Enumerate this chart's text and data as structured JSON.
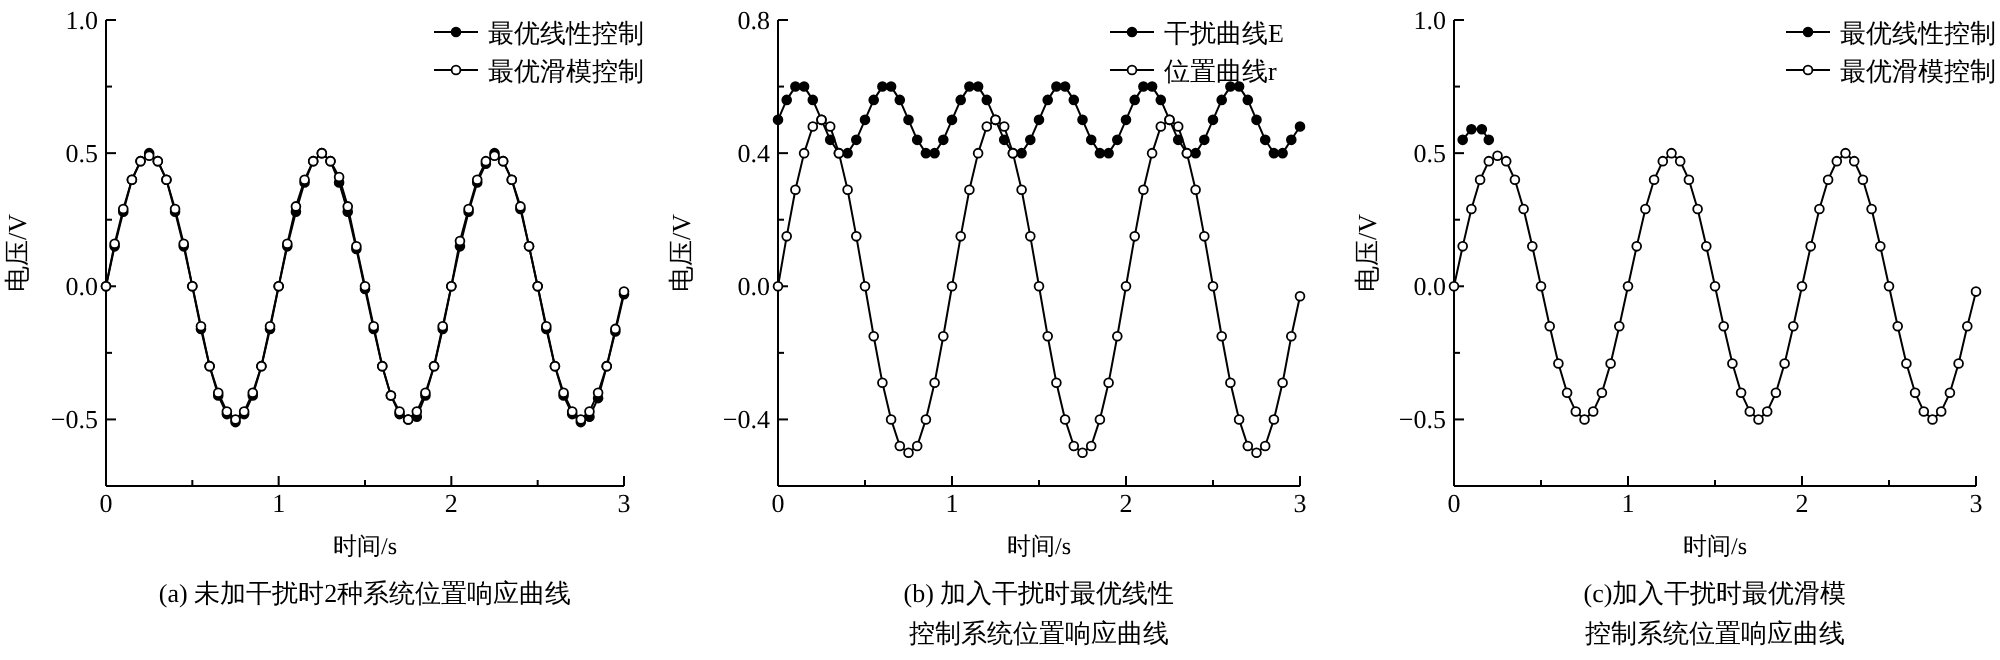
{
  "chart_data": [
    {
      "type": "line",
      "title": "(a) 未加干扰时2种系统位置响应曲线",
      "xlabel": "时间/s",
      "ylabel": "电压/V",
      "xlim": [
        0,
        3
      ],
      "ylim": [
        -0.75,
        1.0
      ],
      "xticks": [
        0,
        {
          "value": 0.5,
          "label": null
        },
        1,
        {
          "value": 1.5,
          "label": null
        },
        2,
        {
          "value": 2.5,
          "label": null
        },
        3
      ],
      "yticks": [
        {
          "value": -0.5,
          "label": "−0.5"
        },
        {
          "value": -0.25,
          "label": null
        },
        {
          "value": 0,
          "label": "0.0"
        },
        {
          "value": 0.25,
          "label": null
        },
        {
          "value": 0.5,
          "label": "0.5"
        },
        {
          "value": 0.75,
          "label": null
        },
        {
          "value": 1.0,
          "label": "1.0"
        }
      ],
      "legend": "top right",
      "grid": false,
      "x": [
        0,
        0.05,
        0.1,
        0.15,
        0.2,
        0.25,
        0.3,
        0.35,
        0.4,
        0.45,
        0.5,
        0.55,
        0.6,
        0.65,
        0.7,
        0.75,
        0.8,
        0.85,
        0.9,
        0.95,
        1,
        1.05,
        1.1,
        1.15,
        1.2,
        1.25,
        1.3,
        1.35,
        1.4,
        1.45,
        1.5,
        1.55,
        1.6,
        1.65,
        1.7,
        1.75,
        1.8,
        1.85,
        1.9,
        1.95,
        2,
        2.05,
        2.1,
        2.15,
        2.2,
        2.25,
        2.3,
        2.35,
        2.4,
        2.45,
        2.5,
        2.55,
        2.6,
        2.65,
        2.7,
        2.75,
        2.8,
        2.85,
        2.9,
        2.95,
        3
      ],
      "series": [
        {
          "name": "最优线性控制",
          "color": "#000000",
          "marker": "circle",
          "values": [
            0,
            0.15,
            0.28,
            0.4,
            0.47,
            0.5,
            0.47,
            0.4,
            0.28,
            0.15,
            0,
            -0.16,
            -0.3,
            -0.41,
            -0.48,
            -0.51,
            -0.48,
            -0.41,
            -0.3,
            -0.16,
            0,
            0.15,
            0.28,
            0.39,
            0.47,
            0.5,
            0.47,
            0.39,
            0.28,
            0.14,
            -0.01,
            -0.16,
            -0.3,
            -0.41,
            -0.48,
            -0.5,
            -0.49,
            -0.41,
            -0.3,
            -0.16,
            0,
            0.15,
            0.28,
            0.39,
            0.46,
            0.5,
            0.47,
            0.4,
            0.29,
            0.15,
            0,
            -0.16,
            -0.3,
            -0.41,
            -0.48,
            -0.51,
            -0.49,
            -0.42,
            -0.3,
            -0.17,
            -0.03
          ]
        },
        {
          "name": "最优滑模控制",
          "color": "#000000",
          "marker": "circle",
          "values": [
            0,
            0.16,
            0.29,
            0.4,
            0.47,
            0.49,
            0.47,
            0.4,
            0.29,
            0.16,
            0,
            -0.15,
            -0.3,
            -0.4,
            -0.47,
            -0.5,
            -0.47,
            -0.4,
            -0.3,
            -0.15,
            0,
            0.16,
            0.3,
            0.4,
            0.47,
            0.5,
            0.47,
            0.41,
            0.3,
            0.15,
            0,
            -0.15,
            -0.3,
            -0.41,
            -0.47,
            -0.5,
            -0.47,
            -0.4,
            -0.3,
            -0.15,
            0,
            0.17,
            0.29,
            0.4,
            0.47,
            0.49,
            0.47,
            0.4,
            0.3,
            0.15,
            0,
            -0.15,
            -0.3,
            -0.4,
            -0.47,
            -0.5,
            -0.47,
            -0.4,
            -0.3,
            -0.16,
            -0.02
          ]
        }
      ]
    },
    {
      "type": "line",
      "title": "(b) 加入干扰时最优线性控制系统位置响应曲线",
      "xlabel": "时间/s",
      "ylabel": "电压/V",
      "xlim": [
        0,
        3
      ],
      "ylim": [
        -0.6,
        0.8
      ],
      "xticks": [
        0,
        {
          "value": 0.5,
          "label": null
        },
        1,
        {
          "value": 1.5,
          "label": null
        },
        2,
        {
          "value": 2.5,
          "label": null
        },
        3
      ],
      "yticks": [
        {
          "value": -0.4,
          "label": "−0.4"
        },
        {
          "value": -0.2,
          "label": null
        },
        {
          "value": 0,
          "label": "0.0"
        },
        {
          "value": 0.2,
          "label": null
        },
        {
          "value": 0.4,
          "label": "0.4"
        },
        {
          "value": 0.6,
          "label": null
        },
        {
          "value": 0.8,
          "label": "0.8"
        }
      ],
      "legend": "top right",
      "grid": false,
      "x": [
        0,
        0.05,
        0.1,
        0.15,
        0.2,
        0.25,
        0.3,
        0.35,
        0.4,
        0.45,
        0.5,
        0.55,
        0.6,
        0.65,
        0.7,
        0.75,
        0.8,
        0.85,
        0.9,
        0.95,
        1,
        1.05,
        1.1,
        1.15,
        1.2,
        1.25,
        1.3,
        1.35,
        1.4,
        1.45,
        1.5,
        1.55,
        1.6,
        1.65,
        1.7,
        1.75,
        1.8,
        1.85,
        1.9,
        1.95,
        2,
        2.05,
        2.1,
        2.15,
        2.2,
        2.25,
        2.3,
        2.35,
        2.4,
        2.45,
        2.5,
        2.55,
        2.6,
        2.65,
        2.7,
        2.75,
        2.8,
        2.85,
        2.9,
        2.95,
        3
      ],
      "series": [
        {
          "name": "干扰曲线E",
          "color": "#000000",
          "marker": "circle",
          "values": [
            0.5,
            0.56,
            0.6,
            0.6,
            0.56,
            0.5,
            0.44,
            0.4,
            0.4,
            0.44,
            0.5,
            0.56,
            0.6,
            0.6,
            0.56,
            0.5,
            0.44,
            0.4,
            0.4,
            0.44,
            0.5,
            0.56,
            0.6,
            0.6,
            0.56,
            0.5,
            0.44,
            0.4,
            0.4,
            0.44,
            0.5,
            0.56,
            0.6,
            0.6,
            0.56,
            0.5,
            0.44,
            0.4,
            0.4,
            0.44,
            0.5,
            0.56,
            0.6,
            0.6,
            0.56,
            0.5,
            0.44,
            0.4,
            0.4,
            0.44,
            0.5,
            0.56,
            0.6,
            0.6,
            0.56,
            0.5,
            0.44,
            0.4,
            0.4,
            0.44,
            0.48
          ]
        },
        {
          "name": "位置曲线r",
          "color": "#000000",
          "marker": "circle",
          "values": [
            0,
            0.15,
            0.29,
            0.4,
            0.48,
            0.5,
            0.48,
            0.4,
            0.29,
            0.15,
            0,
            -0.15,
            -0.29,
            -0.4,
            -0.48,
            -0.5,
            -0.48,
            -0.4,
            -0.29,
            -0.15,
            0,
            0.15,
            0.29,
            0.4,
            0.48,
            0.5,
            0.48,
            0.4,
            0.29,
            0.15,
            0,
            -0.15,
            -0.29,
            -0.4,
            -0.48,
            -0.5,
            -0.48,
            -0.4,
            -0.29,
            -0.15,
            0,
            0.15,
            0.29,
            0.4,
            0.48,
            0.5,
            0.48,
            0.4,
            0.29,
            0.15,
            0,
            -0.15,
            -0.29,
            -0.4,
            -0.48,
            -0.5,
            -0.48,
            -0.4,
            -0.29,
            -0.15,
            -0.03
          ]
        }
      ]
    },
    {
      "type": "line",
      "title": "(c)加入干扰时最优滑模控制系统位置响应曲线",
      "xlabel": "时间/s",
      "ylabel": "电压/V",
      "xlim": [
        0,
        3
      ],
      "ylim": [
        -0.75,
        1.0
      ],
      "xticks": [
        0,
        {
          "value": 0.5,
          "label": null
        },
        1,
        {
          "value": 1.5,
          "label": null
        },
        2,
        {
          "value": 2.5,
          "label": null
        },
        3
      ],
      "yticks": [
        {
          "value": -0.5,
          "label": "−0.5"
        },
        {
          "value": -0.25,
          "label": null
        },
        {
          "value": 0,
          "label": "0.0"
        },
        {
          "value": 0.25,
          "label": null
        },
        {
          "value": 0.5,
          "label": "0.5"
        },
        {
          "value": 0.75,
          "label": null
        },
        {
          "value": 1.0,
          "label": "1.0"
        }
      ],
      "legend": "top right",
      "grid": false,
      "x": [
        0,
        0.05,
        0.1,
        0.15,
        0.2,
        0.25,
        0.3,
        0.35,
        0.4,
        0.45,
        0.5,
        0.55,
        0.6,
        0.65,
        0.7,
        0.75,
        0.8,
        0.85,
        0.9,
        0.95,
        1,
        1.05,
        1.1,
        1.15,
        1.2,
        1.25,
        1.3,
        1.35,
        1.4,
        1.45,
        1.5,
        1.55,
        1.6,
        1.65,
        1.7,
        1.75,
        1.8,
        1.85,
        1.9,
        1.95,
        2,
        2.05,
        2.1,
        2.15,
        2.2,
        2.25,
        2.3,
        2.35,
        2.4,
        2.45,
        2.5,
        2.55,
        2.6,
        2.65,
        2.7,
        2.75,
        2.8,
        2.85,
        2.9,
        2.95,
        3
      ],
      "series": [
        {
          "name": "最优线性控制",
          "color": "#000000",
          "marker": "circle",
          "x": [
            0.05,
            0.1,
            0.16,
            0.2
          ],
          "values": [
            0.55,
            0.59,
            0.59,
            0.55
          ]
        },
        {
          "name": "最优滑模控制",
          "color": "#000000",
          "marker": "circle",
          "values": [
            0,
            0.15,
            0.29,
            0.4,
            0.47,
            0.49,
            0.47,
            0.4,
            0.29,
            0.15,
            0,
            -0.15,
            -0.29,
            -0.4,
            -0.47,
            -0.5,
            -0.47,
            -0.4,
            -0.29,
            -0.15,
            0,
            0.15,
            0.29,
            0.4,
            0.47,
            0.5,
            0.47,
            0.4,
            0.29,
            0.15,
            0,
            -0.15,
            -0.29,
            -0.4,
            -0.47,
            -0.5,
            -0.47,
            -0.4,
            -0.29,
            -0.15,
            0,
            0.15,
            0.29,
            0.4,
            0.47,
            0.5,
            0.47,
            0.4,
            0.29,
            0.15,
            0,
            -0.15,
            -0.29,
            -0.4,
            -0.47,
            -0.5,
            -0.47,
            -0.4,
            -0.29,
            -0.15,
            -0.02
          ]
        }
      ]
    }
  ]
}
